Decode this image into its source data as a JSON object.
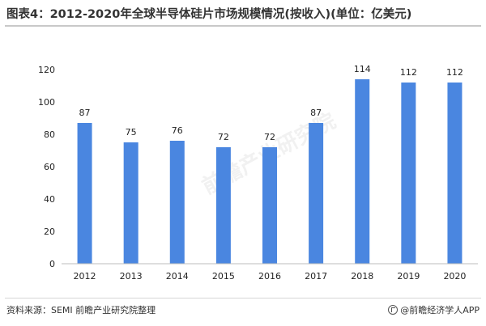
{
  "title": "图表4：2012-2020年全球半导体硅片市场规模情况(按收入)(单位：亿美元)",
  "source": "资料来源：SEMI 前瞻产业研究院整理",
  "brand": "@前瞻经济学人APP",
  "watermark": "前瞻产业研究院",
  "colors": {
    "bar": "#4a86e0",
    "axis": "#bdbdbd",
    "text": "#222222"
  },
  "chart_data": {
    "type": "bar",
    "categories": [
      "2012",
      "2013",
      "2014",
      "2015",
      "2016",
      "2017",
      "2018",
      "2019",
      "2020"
    ],
    "values": [
      87,
      75,
      76,
      72,
      72,
      87,
      114,
      112,
      112
    ],
    "yticks": [
      0,
      20,
      40,
      60,
      80,
      100,
      120
    ],
    "ylim": [
      0,
      120
    ],
    "grid": false,
    "legend": "none"
  }
}
